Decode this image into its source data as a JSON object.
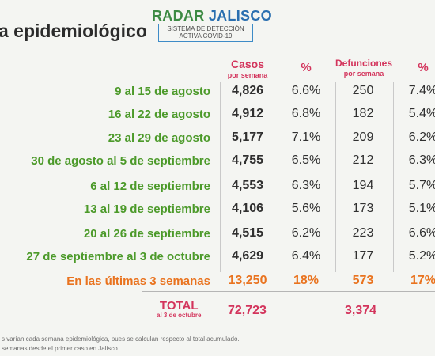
{
  "title": "a epidemiológico",
  "logo": {
    "name_part1": "RADAR",
    "name_part2": "JALISCO",
    "line1": "SISTEMA DE DETECCIÓN",
    "line2": "ACTIVA COVID-19"
  },
  "headers": {
    "cases": "Casos",
    "cases_sub": "por semana",
    "pct1": "%",
    "deaths": "Defunciones",
    "deaths_sub": "por semana",
    "pct2": "%"
  },
  "rows": [
    {
      "week": "9 al 15 de agosto",
      "cases": "4,826",
      "cases_pct": "6.6%",
      "deaths": "250",
      "deaths_pct": "7.4%"
    },
    {
      "week": "16 al 22 de agosto",
      "cases": "4,912",
      "cases_pct": "6.8%",
      "deaths": "182",
      "deaths_pct": "5.4%"
    },
    {
      "week": "23 al 29 de agosto",
      "cases": "5,177",
      "cases_pct": "7.1%",
      "deaths": "209",
      "deaths_pct": "6.2%"
    },
    {
      "week": "30 de agosto al 5 de septiembre",
      "cases": "4,755",
      "cases_pct": "6.5%",
      "deaths": "212",
      "deaths_pct": "6.3%"
    },
    {
      "week": "6 al 12 de septiembre",
      "cases": "4,553",
      "cases_pct": "6.3%",
      "deaths": "194",
      "deaths_pct": "5.7%"
    },
    {
      "week": "13 al 19 de septiembre",
      "cases": "4,106",
      "cases_pct": "5.6%",
      "deaths": "173",
      "deaths_pct": "5.1%"
    },
    {
      "week": "20 al 26 de septiembre",
      "cases": "4,515",
      "cases_pct": "6.2%",
      "deaths": "223",
      "deaths_pct": "6.6%"
    },
    {
      "week": "27 de septiembre al 3 de octubre",
      "cases": "4,629",
      "cases_pct": "6.4%",
      "deaths": "177",
      "deaths_pct": "5.2%"
    }
  ],
  "last3": {
    "label": "En las últimas 3 semanas",
    "cases": "13,250",
    "cases_pct": "18%",
    "deaths": "573",
    "deaths_pct": "17%"
  },
  "total": {
    "label": "TOTAL",
    "sub": "al 3 de octubre",
    "cases": "72,723",
    "deaths": "3,374"
  },
  "footnotes": [
    "s varían cada semana epidemiológica, pues se calculan respecto al total acumulado.",
    "semanas desde el primer caso en Jalisco."
  ]
}
